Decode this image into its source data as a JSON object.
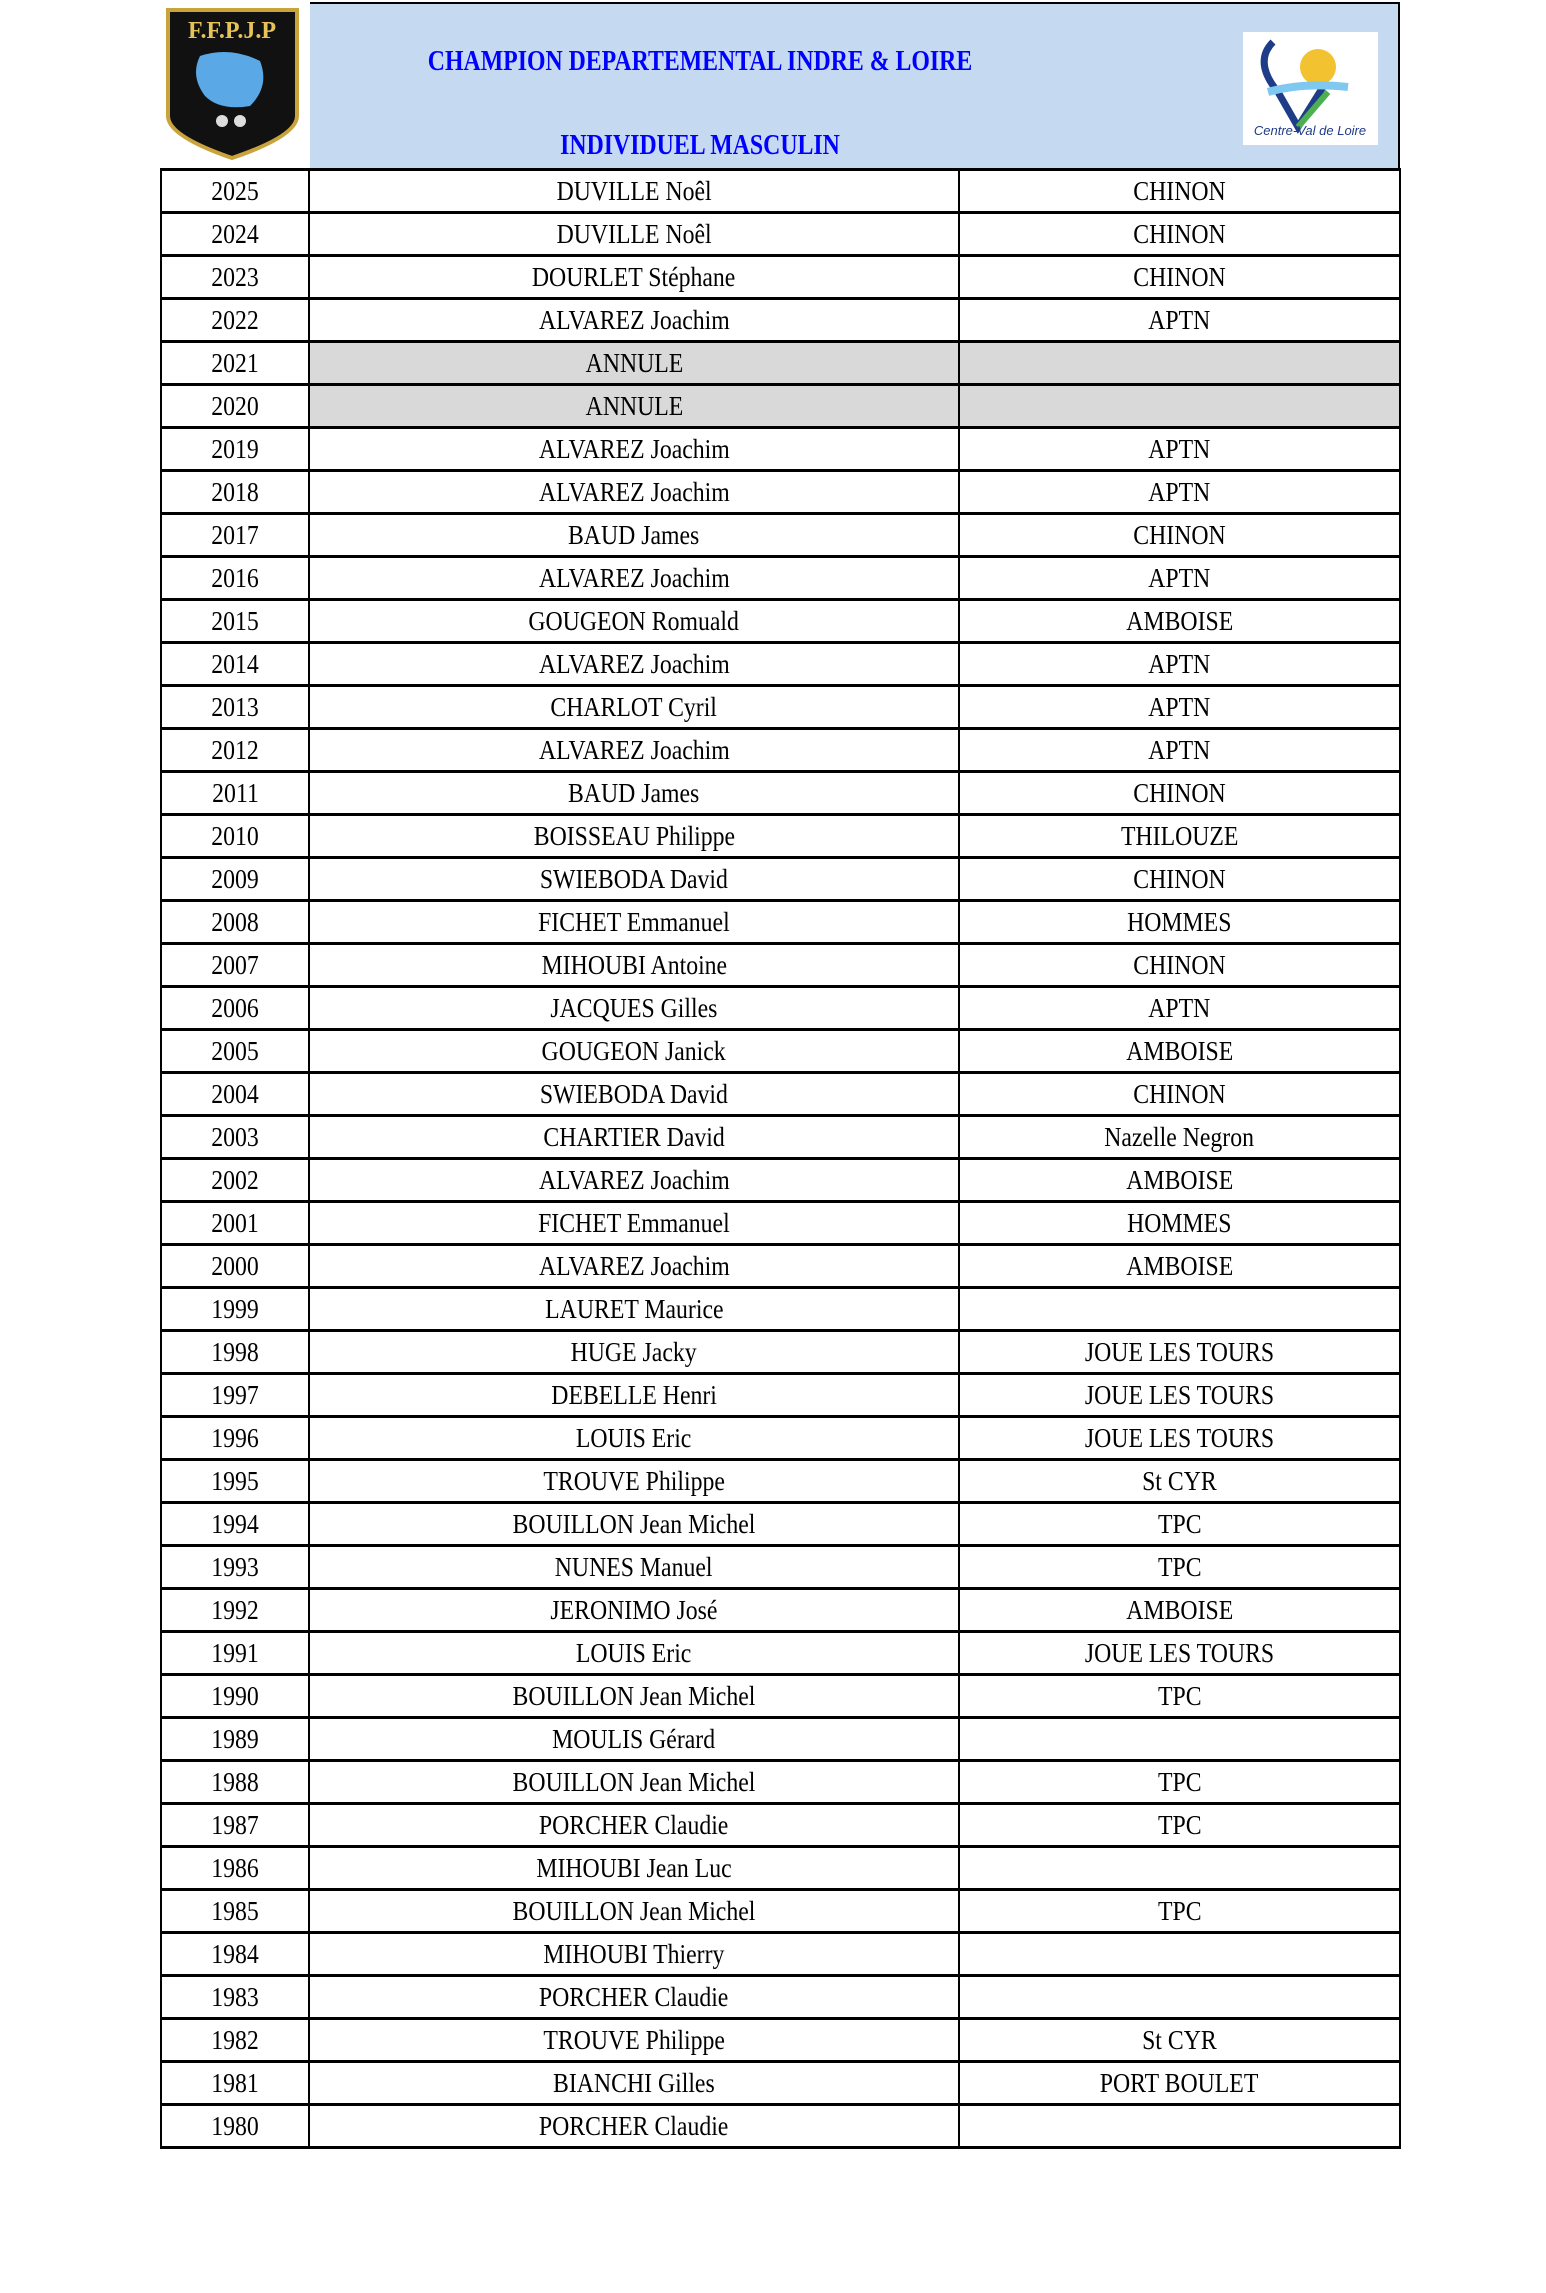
{
  "header": {
    "title": "CHAMPION DEPARTEMENTAL INDRE & LOIRE",
    "subtitle": "INDIVIDUEL MASCULIN",
    "logo_left_text": "F.F.P.J.P",
    "logo_right_text": "Centre-Val de Loire",
    "title_color": "#0000ff",
    "header_bg": "#c5d9f1"
  },
  "rows": [
    {
      "year": "2025",
      "name": "DUVILLE Noêl",
      "club": "CHINON"
    },
    {
      "year": "2024",
      "name": "DUVILLE Noêl",
      "club": "CHINON"
    },
    {
      "year": "2023",
      "name": "DOURLET Stéphane",
      "club": "CHINON"
    },
    {
      "year": "2022",
      "name": "ALVAREZ Joachim",
      "club": "APTN"
    },
    {
      "year": "2021",
      "name": "ANNULE",
      "club": "",
      "cancelled": true
    },
    {
      "year": "2020",
      "name": "ANNULE",
      "club": "",
      "cancelled": true
    },
    {
      "year": "2019",
      "name": "ALVAREZ Joachim",
      "club": "APTN"
    },
    {
      "year": "2018",
      "name": "ALVAREZ Joachim",
      "club": "APTN"
    },
    {
      "year": "2017",
      "name": "BAUD James",
      "club": "CHINON"
    },
    {
      "year": "2016",
      "name": "ALVAREZ Joachim",
      "club": "APTN"
    },
    {
      "year": "2015",
      "name": "GOUGEON Romuald",
      "club": "AMBOISE"
    },
    {
      "year": "2014",
      "name": "ALVAREZ Joachim",
      "club": "APTN"
    },
    {
      "year": "2013",
      "name": "CHARLOT Cyril",
      "club": "APTN"
    },
    {
      "year": "2012",
      "name": "ALVAREZ Joachim",
      "club": "APTN"
    },
    {
      "year": "2011",
      "name": "BAUD James",
      "club": "CHINON"
    },
    {
      "year": "2010",
      "name": "BOISSEAU Philippe",
      "club": "THILOUZE"
    },
    {
      "year": "2009",
      "name": "SWIEBODA David",
      "club": "CHINON"
    },
    {
      "year": "2008",
      "name": "FICHET Emmanuel",
      "club": "HOMMES"
    },
    {
      "year": "2007",
      "name": "MIHOUBI Antoine",
      "club": "CHINON"
    },
    {
      "year": "2006",
      "name": "JACQUES Gilles",
      "club": "APTN"
    },
    {
      "year": "2005",
      "name": "GOUGEON Janick",
      "club": "AMBOISE"
    },
    {
      "year": "2004",
      "name": "SWIEBODA David",
      "club": "CHINON"
    },
    {
      "year": "2003",
      "name": "CHARTIER David",
      "club": "Nazelle Negron"
    },
    {
      "year": "2002",
      "name": "ALVAREZ Joachim",
      "club": "AMBOISE"
    },
    {
      "year": "2001",
      "name": "FICHET Emmanuel",
      "club": "HOMMES"
    },
    {
      "year": "2000",
      "name": "ALVAREZ Joachim",
      "club": "AMBOISE"
    },
    {
      "year": "1999",
      "name": "LAURET Maurice",
      "club": ""
    },
    {
      "year": "1998",
      "name": "HUGE Jacky",
      "club": "JOUE LES TOURS"
    },
    {
      "year": "1997",
      "name": "DEBELLE Henri",
      "club": "JOUE LES TOURS"
    },
    {
      "year": "1996",
      "name": "LOUIS Eric",
      "club": "JOUE LES TOURS"
    },
    {
      "year": "1995",
      "name": "TROUVE Philippe",
      "club": "St CYR"
    },
    {
      "year": "1994",
      "name": "BOUILLON Jean Michel",
      "club": "TPC"
    },
    {
      "year": "1993",
      "name": "NUNES Manuel",
      "club": "TPC"
    },
    {
      "year": "1992",
      "name": "JERONIMO José",
      "club": "AMBOISE"
    },
    {
      "year": "1991",
      "name": "LOUIS Eric",
      "club": "JOUE LES TOURS"
    },
    {
      "year": "1990",
      "name": "BOUILLON Jean Michel",
      "club": "TPC"
    },
    {
      "year": "1989",
      "name": "MOULIS Gérard",
      "club": ""
    },
    {
      "year": "1988",
      "name": "BOUILLON Jean Michel",
      "club": "TPC"
    },
    {
      "year": "1987",
      "name": "PORCHER Claudie",
      "club": "TPC"
    },
    {
      "year": "1986",
      "name": "MIHOUBI Jean Luc",
      "club": ""
    },
    {
      "year": "1985",
      "name": "BOUILLON Jean Michel",
      "club": "TPC"
    },
    {
      "year": "1984",
      "name": "MIHOUBI Thierry",
      "club": ""
    },
    {
      "year": "1983",
      "name": "PORCHER Claudie",
      "club": ""
    },
    {
      "year": "1982",
      "name": "TROUVE Philippe",
      "club": "St CYR"
    },
    {
      "year": "1981",
      "name": "BIANCHI Gilles",
      "club": "PORT BOULET"
    },
    {
      "year": "1980",
      "name": "PORCHER Claudie",
      "club": ""
    }
  ]
}
